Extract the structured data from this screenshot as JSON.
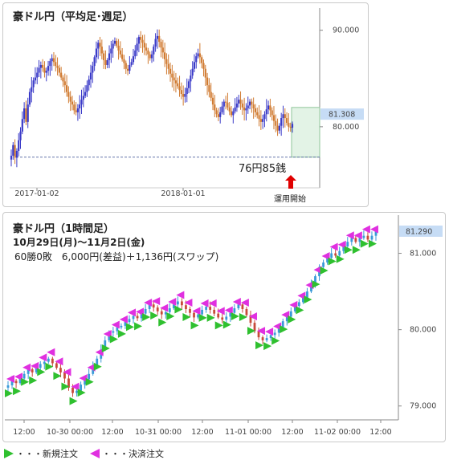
{
  "chart_data": [
    {
      "type": "candlestick",
      "title": "豪ドル円（平均足･週足）",
      "y_ticks": [
        90.0,
        80.0
      ],
      "ylim": [
        74.5,
        92.3
      ],
      "x_ticks": [
        "2017-01-02",
        "2018-01-01"
      ],
      "current_price": "81.308",
      "annotation_value": "76円85銭",
      "annotation_value_y": 76.85,
      "marker_label": "運用開始",
      "operation_range_y": [
        76.85,
        82.0
      ],
      "colors": {
        "up": "#3a3ac8",
        "down": "#d07a30",
        "highlight": "#e3f3e6",
        "price_tag": "#c6dcf5"
      },
      "y_values": [
        77.0,
        78.1,
        76.8,
        77.5,
        78.6,
        79.5,
        80.8,
        81.9,
        80.5,
        82.3,
        83.6,
        84.1,
        84.8,
        85.1,
        85.6,
        86.1,
        86.4,
        86.1,
        85.6,
        85.8,
        86.3,
        86.8,
        87.1,
        86.7,
        86.3,
        86.1,
        85.6,
        85.1,
        84.7,
        84.3,
        83.6,
        83.1,
        82.6,
        82.3,
        81.7,
        81.5,
        81.9,
        82.3,
        82.8,
        83.2,
        83.6,
        84.3,
        84.9,
        85.6,
        86.3,
        87.2,
        88.1,
        88.7,
        88.3,
        87.6,
        86.9,
        86.4,
        86.9,
        87.6,
        88.1,
        88.6,
        88.9,
        88.4,
        87.9,
        87.5,
        87.0,
        86.6,
        86.0,
        85.8,
        86.4,
        86.7,
        87.3,
        87.9,
        88.6,
        89.3,
        89.0,
        88.7,
        88.2,
        87.9,
        87.5,
        87.1,
        87.5,
        88.3,
        89.1,
        89.4,
        88.8,
        88.2,
        87.7,
        87.0,
        86.5,
        86.0,
        85.5,
        85.1,
        84.8,
        84.5,
        84.2,
        83.8,
        83.4,
        83.1,
        83.4,
        84.0,
        84.7,
        85.3,
        86.0,
        86.7,
        87.3,
        87.6,
        87.2,
        86.6,
        86.0,
        85.1,
        84.3,
        83.6,
        83.0,
        82.3,
        81.7,
        81.3,
        81.0,
        81.5,
        82.1,
        82.6,
        82.5,
        82.0,
        81.6,
        81.2,
        81.6,
        82.0,
        82.4,
        82.8,
        82.4,
        82.0,
        81.7,
        81.9,
        82.2,
        82.6,
        82.3,
        81.9,
        81.5,
        81.2,
        80.8,
        80.5,
        80.8,
        81.3,
        81.8,
        82.2,
        81.7,
        81.2,
        80.6,
        80.1,
        79.6,
        80.1,
        80.9,
        81.3,
        80.9,
        80.4,
        80.0,
        79.9,
        80.3
      ]
    },
    {
      "type": "candlestick",
      "title": "豪ドル円（1時間足）",
      "subtitle": "10月29日(月)～11月2日(金)",
      "summary": "60勝0敗　6,000円(差益)＋1,136円(スワップ)",
      "y_ticks": [
        81.0,
        80.0,
        79.0
      ],
      "ylim": [
        78.85,
        81.5
      ],
      "x_ticks": [
        "12:00",
        "10-30 00:00",
        "12:00",
        "10-31 00:00",
        "12:00",
        "11-01 00:00",
        "12:00",
        "11-02 00:00",
        "12:00"
      ],
      "current_price": "81.290",
      "colors": {
        "up": "#3a9ad8",
        "down": "#c84a3a",
        "buy": "#2fc02f",
        "sell": "#e030e0",
        "price_tag": "#c6dcf5"
      },
      "y_values": [
        79.27,
        79.33,
        79.3,
        79.36,
        79.42,
        79.48,
        79.44,
        79.5,
        79.55,
        79.58,
        79.62,
        79.56,
        79.5,
        79.44,
        79.36,
        79.24,
        79.17,
        79.2,
        79.28,
        79.35,
        79.42,
        79.52,
        79.62,
        79.74,
        79.86,
        79.96,
        79.98,
        80.03,
        80.05,
        80.1,
        80.14,
        80.18,
        80.15,
        80.21,
        80.27,
        80.33,
        80.29,
        80.24,
        80.2,
        80.23,
        80.28,
        80.33,
        80.37,
        80.32,
        80.27,
        80.22,
        80.16,
        80.2,
        80.26,
        80.3,
        80.26,
        80.21,
        80.16,
        80.13,
        80.17,
        80.22,
        80.28,
        80.33,
        80.27,
        80.19,
        80.09,
        79.98,
        79.9,
        79.86,
        79.89,
        79.93,
        79.96,
        80.03,
        80.11,
        80.17,
        80.24,
        80.31,
        80.36,
        80.42,
        80.5,
        80.6,
        80.7,
        80.82,
        80.88,
        80.94,
        81.0,
        80.97,
        81.03,
        81.09,
        81.15,
        81.2,
        81.15,
        81.2,
        81.23,
        81.18,
        81.23,
        81.29
      ]
    }
  ],
  "legend": {
    "new_order": "・・・新規注文",
    "settle_order": "・・・決済注文"
  }
}
